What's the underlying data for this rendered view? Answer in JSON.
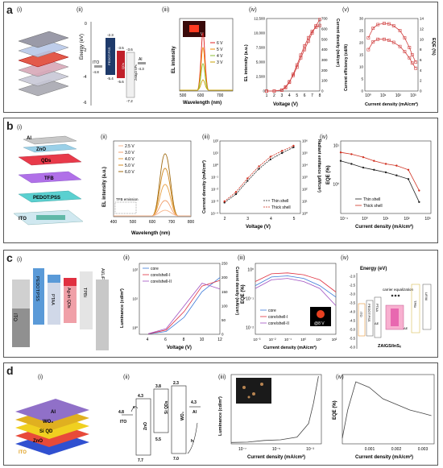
{
  "panels": {
    "a": {
      "label": "a",
      "subs": [
        "(i)",
        "(ii)",
        "(iii)",
        "(iv)",
        "(v)"
      ],
      "energy": {
        "ylabel": "Energy (eV)",
        "yticks": [
          "0",
          "-2",
          "-4",
          "-6"
        ],
        "layers": [
          "ITO",
          "PEDOT:PSS",
          "TFB",
          "QDs",
          "ZnMgO NPs",
          "Al"
        ],
        "values": [
          "-4.8",
          "-2.3",
          "-5.4",
          "-3.5",
          "-5.6",
          "-3.6",
          "-7.2",
          "-4.3"
        ]
      },
      "el_spectrum": {
        "ylabel": "EL intensity",
        "xlabel": "Wavelength (nm)",
        "xticks": [
          "500",
          "600",
          "700"
        ],
        "legend": [
          "6 V",
          "5 V",
          "4 V",
          "3 V"
        ],
        "inset_label": "V",
        "colors": [
          "#e02020",
          "#f08c00",
          "#8bbf30",
          "#c8a000"
        ]
      },
      "el_voltage": {
        "ylabel": "EL intensity (a.u.)",
        "y2label": "Current density (mA/cm²)",
        "xlabel": "Voltage (V)",
        "yticks": [
          "0",
          "2,500",
          "5,000",
          "7,500",
          "10,000",
          "12,500"
        ],
        "y2ticks": [
          "0",
          "100",
          "200",
          "300",
          "400",
          "500",
          "600",
          "700"
        ],
        "xticks": [
          "1",
          "2",
          "3",
          "4",
          "5",
          "6",
          "7",
          "8"
        ]
      },
      "efficiency": {
        "ylabel": "Current efficiency (cd/A)",
        "y2label": "EQE (%)",
        "xlabel": "Current density (mA/cm²)",
        "yticks": [
          "0",
          "5",
          "10",
          "15",
          "20",
          "25",
          "30"
        ],
        "y2ticks": [
          "0",
          "2",
          "4",
          "6",
          "8",
          "10",
          "12",
          "14"
        ],
        "xticks": [
          "10⁰",
          "10¹",
          "10²",
          "10³"
        ]
      }
    },
    "b": {
      "label": "b",
      "subs": [
        "(i)",
        "(ii)",
        "(iii)",
        "(iv)"
      ],
      "stack": [
        "Al",
        "ZnO",
        "QDs",
        "TFB",
        "PEDOT:PSS",
        "ITO"
      ],
      "el": {
        "ylabel": "EL intensity (a.u.)",
        "xlabel": "Wavelength (nm)",
        "xticks": [
          "400",
          "500",
          "600",
          "700",
          "800"
        ],
        "legend": [
          "2.5 V",
          "3.0 V",
          "4.0 V",
          "5.0 V",
          "6.0 V"
        ],
        "annotation": "TFB emission"
      },
      "jv": {
        "ylabel": "Current density (mA/cm²)",
        "y2label": "Radiant emittance (μW/cm²)",
        "xlabel": "Voltage (V)",
        "yticks": [
          "10²",
          "10¹",
          "10⁰",
          "10⁻¹",
          "10⁻²",
          "10⁻³",
          "10⁻⁴"
        ],
        "y2ticks": [
          "10⁶",
          "10⁵",
          "10⁴",
          "10³",
          "10²",
          "10¹",
          "10⁰"
        ],
        "xticks": [
          "2",
          "3",
          "4",
          "5"
        ],
        "legend": [
          "Thin shell",
          "Thick shell"
        ]
      },
      "eqe": {
        "ylabel": "EQE (%)",
        "xlabel": "Current density (mA/cm²)",
        "yticks": [
          "10¹",
          "10⁰"
        ],
        "xticks": [
          "10⁻¹",
          "10⁰",
          "10¹",
          "10²",
          "10³"
        ],
        "legend": [
          "Thin shell",
          "Thick shell"
        ]
      }
    },
    "c": {
      "label": "c",
      "subs": [
        "(i)",
        "(ii)",
        "(iii)",
        "(iv)"
      ],
      "stack": [
        "ITO",
        "PEDOT:PSS",
        "PTAA",
        "Ag-In QDs",
        "TPBi",
        "Al/LiF"
      ],
      "lum": {
        "ylabel": "Luminance (cd/m²)",
        "y2label": "Current density (mA/cm²)",
        "xlabel": "Voltage (V)",
        "yticks": [
          "10²",
          "10¹",
          "10⁰"
        ],
        "y2ticks": [
          "0",
          "50",
          "100",
          "150",
          "200",
          "250"
        ],
        "xticks": [
          "4",
          "6",
          "8",
          "10",
          "12"
        ],
        "legend": [
          "core",
          "core/shell-I",
          "core/shell-II"
        ]
      },
      "eqe": {
        "ylabel": "EQE (%)",
        "xlabel": "Current density (mA/cm²)",
        "yticks": [
          "10⁰",
          "10⁻¹",
          "10⁻²"
        ],
        "xticks": [
          "10⁻³",
          "10⁻²",
          "10⁻¹",
          "10⁰",
          "10¹",
          "10²"
        ],
        "legend": [
          "core",
          "core/shell-I",
          "core/shell-II"
        ],
        "inset_label": "@8 V"
      },
      "energy": {
        "ylabel": "Energy (eV)",
        "yticks": [
          "-2.0",
          "-2.5",
          "-3.0",
          "-3.5",
          "-4.0",
          "-4.5",
          "-5.0",
          "-5.5",
          "-6.0"
        ],
        "layers": [
          "ITO",
          "PEDOT:PSS",
          "PTAA",
          "TPBi",
          "LiF/Al"
        ],
        "annotations": [
          "carrier equalization",
          "ΔE",
          "ΔE"
        ],
        "qd_label": "ZAIGS/InSₓ"
      }
    },
    "d": {
      "label": "d",
      "subs": [
        "(i)",
        "(ii)",
        "(iii)",
        "(iv)"
      ],
      "stack": [
        "Al",
        "WO₃",
        "Si QD",
        "ZnO",
        "ITO"
      ],
      "band": {
        "layers": [
          "ITO",
          "ZnO",
          "Si QDs",
          "WO₃",
          "Al"
        ],
        "values": [
          "4.3",
          "4.8",
          "3.8",
          "4.5",
          "5.5",
          "2.3",
          "4.3",
          "7.7",
          "7.0"
        ],
        "carriers": [
          "e",
          "h"
        ]
      },
      "lum": {
        "ylabel": "Luminance (cd/m²)",
        "xlabel": "Current density (mA/cm²)",
        "xticks": [
          "10⁻⁷",
          "10⁻⁵",
          "10⁻³"
        ]
      },
      "eqe": {
        "ylabel": "EQE (%)",
        "xlabel": "Current density (mA/cm²)",
        "xticks": [
          "0.001",
          "0.002",
          "0.003"
        ]
      }
    }
  },
  "chart_data": [
    {
      "type": "line",
      "panel": "a(iv)",
      "xlabel": "Voltage (V)",
      "ylabel": "EL intensity (a.u.)",
      "y2label": "Current density (mA/cm²)",
      "xlim": [
        1,
        8
      ],
      "ylim": [
        0,
        12500
      ],
      "y2lim": [
        0,
        700
      ],
      "series": [
        {
          "axis": "left",
          "x": [
            1,
            2,
            3,
            3.5,
            4,
            4.5,
            5,
            5.5,
            6,
            6.5,
            7,
            7.5,
            8
          ],
          "values": [
            0,
            0,
            150,
            600,
            1500,
            2900,
            4500,
            6200,
            7800,
            9200,
            10300,
            11000,
            11300
          ]
        },
        {
          "axis": "right",
          "x": [
            1,
            2,
            3,
            3.5,
            4,
            4.5,
            5,
            5.5,
            6,
            6.5,
            7,
            7.5,
            8
          ],
          "values": [
            0,
            0,
            10,
            40,
            90,
            150,
            230,
            320,
            400,
            480,
            560,
            630,
            690
          ]
        }
      ]
    },
    {
      "type": "line",
      "panel": "a(v)",
      "xlabel": "Current density (mA/cm²)",
      "ylabel": "Current efficiency (cd/A)",
      "y2label": "EQE (%)",
      "xscale": "log",
      "xlim": [
        0.3,
        700
      ],
      "ylim": [
        0,
        30
      ],
      "y2lim": [
        0,
        14
      ],
      "series": [
        {
          "axis": "left",
          "x": [
            0.5,
            1,
            2,
            5,
            10,
            20,
            50,
            100,
            200,
            300,
            500
          ],
          "values": [
            22,
            26,
            27.5,
            28,
            27.8,
            27,
            25,
            22,
            18,
            15,
            12
          ]
        },
        {
          "axis": "right",
          "x": [
            0.5,
            1,
            2,
            5,
            10,
            20,
            50,
            100,
            200,
            300,
            500
          ],
          "values": [
            8,
            9.5,
            10,
            10,
            9.8,
            9.4,
            8.6,
            7.6,
            6.4,
            5.4,
            4.4
          ]
        }
      ]
    },
    {
      "type": "line",
      "panel": "b(iii)",
      "xlabel": "Voltage (V)",
      "ylabel": "Current density (mA/cm²)",
      "y2label": "Radiant emittance (μW/cm²)",
      "yscale": "log",
      "xlim": [
        1.8,
        5.3
      ],
      "ylim": [
        0.0001,
        100
      ],
      "series": [
        {
          "name": "Thin shell",
          "x": [
            2,
            2.5,
            3,
            3.5,
            4,
            4.5,
            5
          ],
          "values": [
            0.0008,
            0.004,
            0.05,
            0.5,
            3,
            10,
            30
          ]
        },
        {
          "name": "Thick shell",
          "x": [
            2,
            2.5,
            3,
            3.5,
            4,
            4.5,
            5
          ],
          "values": [
            0.001,
            0.006,
            0.08,
            0.8,
            5,
            15,
            40
          ]
        }
      ]
    },
    {
      "type": "line",
      "panel": "b(iv)",
      "xlabel": "Current density (mA/cm²)",
      "ylabel": "EQE (%)",
      "xscale": "log",
      "yscale": "log",
      "xlim": [
        0.1,
        1000
      ],
      "series": [
        {
          "name": "Thin shell",
          "x": [
            0.1,
            0.3,
            1,
            3,
            10,
            30,
            100,
            300
          ],
          "values": [
            12,
            10,
            8,
            7,
            6,
            5,
            4,
            1
          ]
        },
        {
          "name": "Thick shell",
          "x": [
            0.1,
            0.3,
            1,
            3,
            10,
            30,
            100,
            300
          ],
          "values": [
            20,
            18,
            15,
            12,
            10,
            9,
            7,
            2
          ]
        }
      ]
    },
    {
      "type": "line",
      "panel": "c(ii)",
      "xlabel": "Voltage (V)",
      "ylabel": "Luminance (cd/m²)",
      "y2label": "Current density (mA/cm²)",
      "xlim": [
        3,
        12
      ],
      "series": [
        {
          "name": "core",
          "x": [
            4,
            6,
            8,
            10,
            12
          ],
          "values": [
            1,
            10,
            60,
            150,
            200
          ]
        },
        {
          "name": "core/shell-I",
          "x": [
            4,
            6,
            8,
            10,
            12
          ],
          "values": [
            1.5,
            15,
            80,
            170,
            190
          ]
        },
        {
          "name": "core/shell-II",
          "x": [
            4,
            6,
            8,
            10,
            12
          ],
          "values": [
            2,
            20,
            100,
            180,
            160
          ]
        }
      ]
    },
    {
      "type": "line",
      "panel": "c(iii)",
      "xlabel": "Current density (mA/cm²)",
      "ylabel": "EQE (%)",
      "xscale": "log",
      "yscale": "log",
      "xlim": [
        0.001,
        100
      ],
      "series": [
        {
          "name": "core",
          "x": [
            0.001,
            0.01,
            0.1,
            1,
            10,
            100
          ],
          "values": [
            0.5,
            1,
            1.1,
            0.9,
            0.5,
            0.2
          ]
        },
        {
          "name": "core/shell-I",
          "x": [
            0.001,
            0.01,
            0.1,
            1,
            10,
            100
          ],
          "values": [
            0.7,
            1.3,
            1.4,
            1.2,
            0.8,
            0.3
          ]
        },
        {
          "name": "core/shell-II",
          "x": [
            0.001,
            0.01,
            0.1,
            1,
            10,
            100
          ],
          "values": [
            0.4,
            0.8,
            0.9,
            0.7,
            0.4,
            0.1
          ]
        }
      ]
    },
    {
      "type": "line",
      "panel": "d(iii)",
      "xlabel": "Current density (mA/cm²)",
      "ylabel": "Luminance (cd/m²)",
      "xscale": "log",
      "xlim": [
        1e-08,
        0.003
      ],
      "series": [
        {
          "x": [
            1e-08,
            1e-07,
            1e-06,
            1e-05,
            0.0001,
            0.0005,
            0.001,
            0.002
          ],
          "values": [
            0.02,
            0.025,
            0.05,
            0.06,
            0.1,
            0.3,
            0.6,
            1
          ]
        }
      ]
    },
    {
      "type": "line",
      "panel": "d(iv)",
      "xlabel": "Current density (mA/cm²)",
      "ylabel": "EQE (%)",
      "xlim": [
        0,
        0.0034
      ],
      "series": [
        {
          "x": [
            0,
            0.0002,
            0.0005,
            0.001,
            0.0015,
            0.002,
            0.0025,
            0.003,
            0.0033
          ],
          "values": [
            0.05,
            0.3,
            0.55,
            0.5,
            0.4,
            0.35,
            0.3,
            0.27,
            0.25
          ]
        }
      ]
    }
  ]
}
